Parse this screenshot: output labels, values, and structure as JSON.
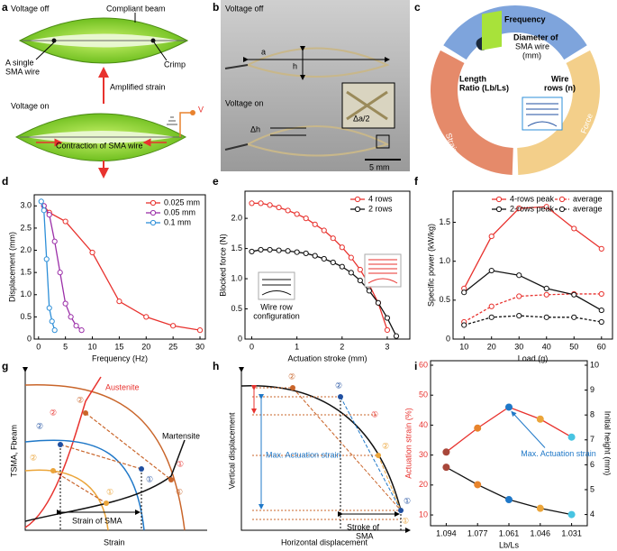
{
  "panels": {
    "labels": [
      "a",
      "b",
      "c",
      "d",
      "e",
      "f",
      "g",
      "h",
      "i"
    ],
    "a": {
      "voltage_off": "Voltage off",
      "beam": "Compliant beam",
      "wire": [
        "A single",
        "SMA wire"
      ],
      "crimp": "Crimp",
      "amplified": "Amplified strain",
      "voltage_on": "Voltage on",
      "voltage": "V",
      "contraction": "Contraction of SMA wire"
    },
    "b": {
      "voltage_off": "Voltage off",
      "a": "a",
      "h": "h",
      "voltage_on": "Voltage on",
      "dh": "Δh",
      "da": "Δa/2",
      "scale": "5 mm"
    },
    "c": {
      "frequency": "Frequency",
      "diameter": [
        "Diameter of",
        "SMA wire",
        "(mm)"
      ],
      "length": [
        "Length",
        "Ratio (Lb/Ls)"
      ],
      "rows": [
        "Wire",
        "rows (n)"
      ],
      "strain": "Strain",
      "force": "Force"
    },
    "g": {
      "austenite": "Austenite",
      "martensite": "Martensite",
      "xlabel": "Strain",
      "ylabel": "TSMA, Fbeam",
      "strain_sma": "Strain of SMA",
      "markers": [
        "②",
        "②",
        "②",
        "②",
        "①",
        "①",
        "①",
        "①"
      ]
    },
    "h": {
      "ylabel": "Vertical displacement",
      "xlabel": "Horizontal displacement",
      "max": "Max. Actuation strain",
      "stroke": [
        "Stroke of",
        "SMA"
      ],
      "markers": [
        "②",
        "①",
        "②",
        "①",
        "②",
        "①"
      ]
    }
  },
  "chart_data": [
    {
      "type": "line",
      "xlabel": "Frequency (Hz)",
      "ylabel": "Displacement (mm)",
      "xlim": [
        -0.8,
        31
      ],
      "ylim": [
        0,
        3.25
      ],
      "xticks": [
        0,
        5,
        10,
        15,
        20,
        25,
        30
      ],
      "yticks": [
        0,
        0.5,
        {
          "value": 1,
          "label": "1.0"
        },
        1.5,
        {
          "value": 2,
          "label": "2.0"
        },
        2.5,
        {
          "value": 3,
          "label": "3.0"
        }
      ],
      "legend": "upper right",
      "marker": "open",
      "series": [
        {
          "name": "0.025 mm",
          "color": "#e8322e",
          "x": [
            1,
            2,
            5,
            10,
            15,
            20,
            25,
            30
          ],
          "values": [
            3.0,
            2.85,
            2.65,
            1.95,
            0.85,
            0.5,
            0.3,
            0.2
          ]
        },
        {
          "name": "0.05 mm",
          "color": "#9b2fa8",
          "x": [
            1,
            2,
            3,
            4,
            5,
            6,
            7,
            8
          ],
          "values": [
            3.0,
            2.8,
            2.2,
            1.5,
            0.8,
            0.5,
            0.3,
            0.2
          ]
        },
        {
          "name": "0.1 mm",
          "color": "#2e8fd8",
          "x": [
            0.5,
            1,
            1.5,
            2,
            2.5,
            3
          ],
          "values": [
            3.1,
            2.9,
            1.8,
            0.7,
            0.4,
            0.2
          ]
        }
      ]
    },
    {
      "type": "line",
      "xlabel": "Actuation stroke (mm)",
      "ylabel": "Blocked force (N)",
      "xlim": [
        -0.15,
        3.5
      ],
      "ylim": [
        0,
        2.45
      ],
      "xticks": [
        0,
        1,
        2,
        3
      ],
      "yticks": [
        0,
        0.5,
        {
          "value": 1,
          "label": "1.0"
        },
        1.5,
        {
          "value": 2,
          "label": "2.0"
        }
      ],
      "legend": "upper right",
      "marker": "open",
      "annotation": [
        "Wire row",
        "configuration"
      ],
      "series": [
        {
          "name": "4 rows",
          "color": "#e8322e",
          "x": [
            0,
            0.2,
            0.4,
            0.6,
            0.8,
            1.0,
            1.2,
            1.4,
            1.6,
            1.8,
            2.0,
            2.2,
            2.4,
            2.6,
            2.8,
            3.0
          ],
          "values": [
            2.25,
            2.25,
            2.22,
            2.18,
            2.13,
            2.07,
            2.0,
            1.9,
            1.8,
            1.67,
            1.52,
            1.35,
            1.15,
            0.9,
            0.6,
            0.15
          ]
        },
        {
          "name": "2 rows",
          "color": "#111111",
          "x": [
            0,
            0.2,
            0.4,
            0.6,
            0.8,
            1.0,
            1.2,
            1.4,
            1.6,
            1.8,
            2.0,
            2.2,
            2.4,
            2.6,
            2.8,
            3.0,
            3.2
          ],
          "values": [
            1.45,
            1.48,
            1.48,
            1.47,
            1.46,
            1.44,
            1.42,
            1.38,
            1.33,
            1.27,
            1.2,
            1.1,
            0.97,
            0.8,
            0.6,
            0.35,
            0.05
          ]
        }
      ]
    },
    {
      "type": "line",
      "xlabel": "Load (g)",
      "ylabel": "Specific power (kW/kg)",
      "xlim": [
        6,
        64
      ],
      "ylim": [
        0,
        1.9
      ],
      "xticks": [
        10,
        20,
        30,
        40,
        50,
        60
      ],
      "yticks": [
        0,
        0.5,
        {
          "value": 1,
          "label": "1.0"
        },
        1.5
      ],
      "legend": "upper right",
      "legend_columns": 2,
      "marker": "open",
      "series": [
        {
          "name": "4-rows peak",
          "color": "#e8322e",
          "x": [
            10,
            20,
            30,
            40,
            50,
            60
          ],
          "values": [
            0.65,
            1.32,
            1.68,
            1.7,
            1.42,
            1.16
          ]
        },
        {
          "name": "average",
          "color": "#e8322e",
          "dash": true,
          "x": [
            10,
            20,
            30,
            40,
            50,
            60
          ],
          "values": [
            0.22,
            0.42,
            0.55,
            0.57,
            0.58,
            0.58
          ]
        },
        {
          "name": "2-rows peak",
          "color": "#111111",
          "x": [
            10,
            20,
            30,
            40,
            50,
            60
          ],
          "values": [
            0.6,
            0.88,
            0.82,
            0.65,
            0.57,
            0.37
          ]
        },
        {
          "name": "average",
          "color": "#111111",
          "dash": true,
          "x": [
            10,
            20,
            30,
            40,
            50,
            60
          ],
          "values": [
            0.18,
            0.28,
            0.3,
            0.28,
            0.28,
            0.22
          ]
        }
      ]
    },
    {
      "type": "line",
      "xlabel": "Lb/Ls",
      "ylabel": "Actuation strain (%)",
      "y2label": "Initial height (mm)",
      "categories": [
        "1.094",
        "1.077",
        "1.061",
        "1.046",
        "1.031"
      ],
      "ylim": [
        6.4,
        61.5
      ],
      "yticks": [
        10,
        20,
        30,
        40,
        50,
        60
      ],
      "y2lim": [
        3.55,
        10.18
      ],
      "y2ticks": [
        4,
        5,
        6,
        7,
        8,
        9,
        10
      ],
      "marker": "filled",
      "point_colors": [
        "#a8473a",
        "#e8842c",
        "#1f78c8",
        "#eba53a",
        "#48c4e2"
      ],
      "annotation": "Max. Actuation strain",
      "annotation_color": "#1f78c8",
      "series": [
        {
          "name": "Actuation strain",
          "color": "#e8322e",
          "values": [
            31,
            39,
            46,
            42,
            36
          ]
        },
        {
          "name": "Initial height",
          "color": "#111111",
          "axis": "y2",
          "values": [
            5.9,
            5.2,
            4.6,
            4.25,
            4.0
          ]
        }
      ]
    }
  ]
}
